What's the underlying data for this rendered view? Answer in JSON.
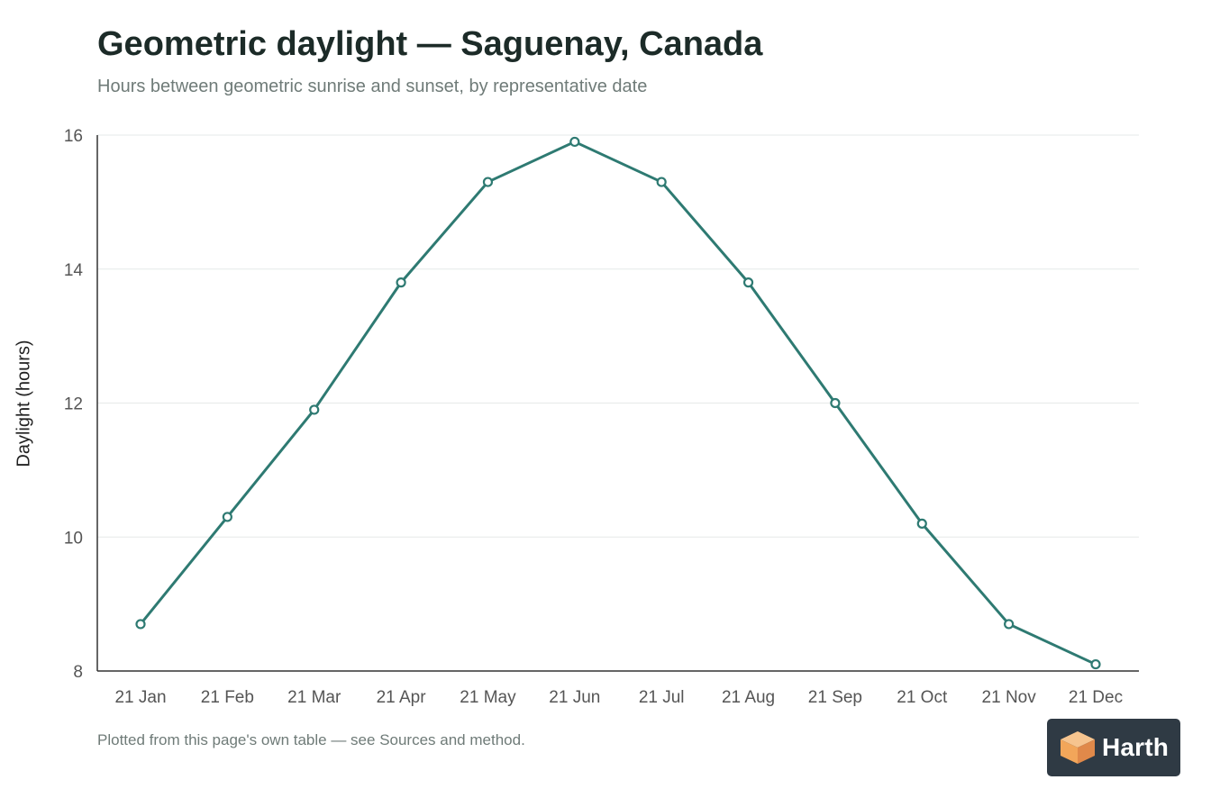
{
  "title": "Geometric daylight — Saguenay, Canada",
  "subtitle": "Hours between geometric sunrise and sunset, by representative date",
  "footnote": "Plotted from this page's own table — see Sources and method.",
  "logo": {
    "text": "Harth",
    "icon": "cube-logo-icon",
    "background": "#2f3a44",
    "accent": "#f2a65a"
  },
  "chart_data": {
    "type": "line",
    "categories": [
      "21 Jan",
      "21 Feb",
      "21 Mar",
      "21 Apr",
      "21 May",
      "21 Jun",
      "21 Jul",
      "21 Aug",
      "21 Sep",
      "21 Oct",
      "21 Nov",
      "21 Dec"
    ],
    "series": [
      {
        "values": [
          8.7,
          10.3,
          11.9,
          13.8,
          15.3,
          15.9,
          15.3,
          13.8,
          12.0,
          10.2,
          8.7,
          8.1
        ]
      }
    ],
    "xlabel": "",
    "ylabel": "Daylight (hours)",
    "ylim": [
      8,
      16
    ],
    "yticks": [
      8,
      10,
      12,
      14,
      16
    ],
    "grid": true,
    "line_color": "#2e7a72"
  }
}
